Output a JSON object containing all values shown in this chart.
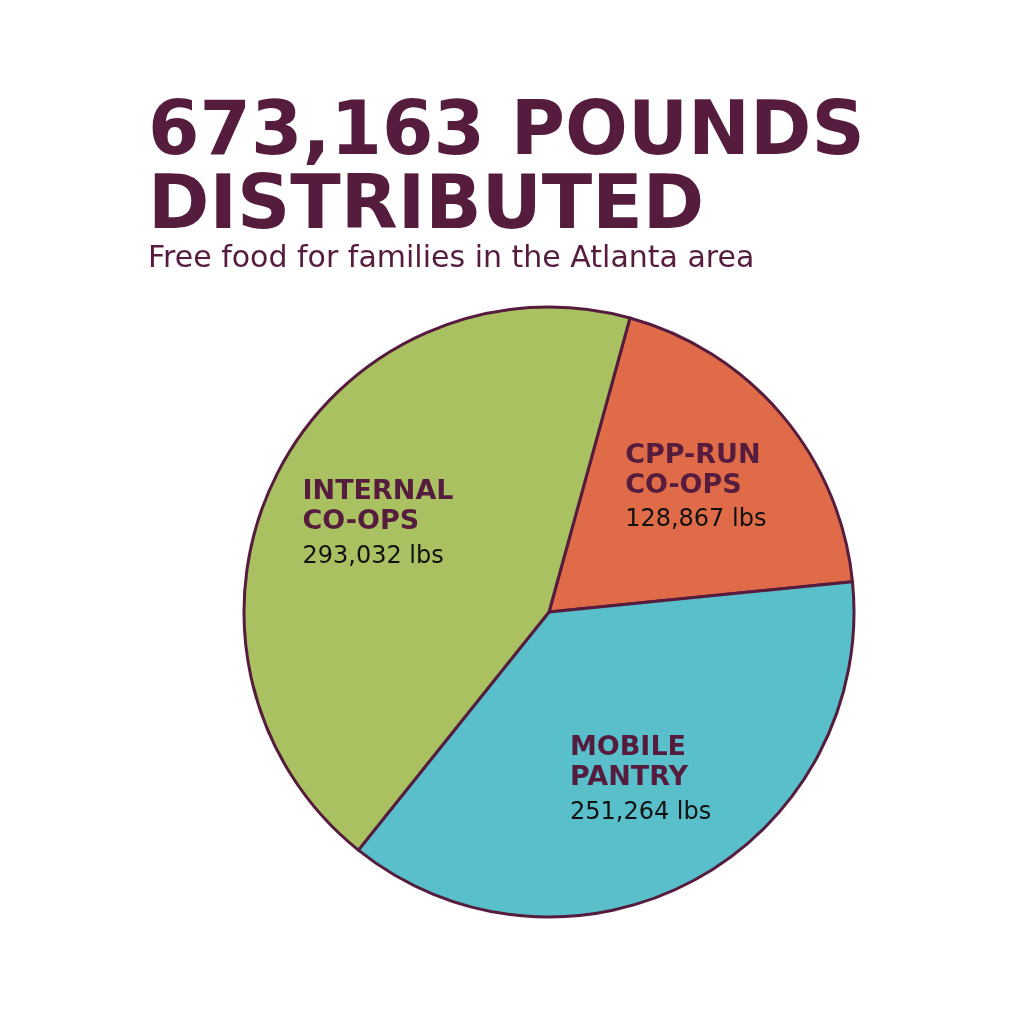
{
  "chart_data": {
    "type": "pie",
    "title": "673,163 POUNDS DISTRIBUTED",
    "subtitle": "Free food for families in the Atlanta area",
    "categories": [
      "CPP-RUN CO-OPS",
      "MOBILE PANTRY",
      "INTERNAL CO-OPS"
    ],
    "values": [
      128867,
      251264,
      293032
    ],
    "colors": [
      "#e06b48",
      "#58bfcb",
      "#a9c160"
    ],
    "value_labels": [
      "128,867 lbs",
      "251,264 lbs",
      "293,032 lbs"
    ],
    "legend": false
  }
}
